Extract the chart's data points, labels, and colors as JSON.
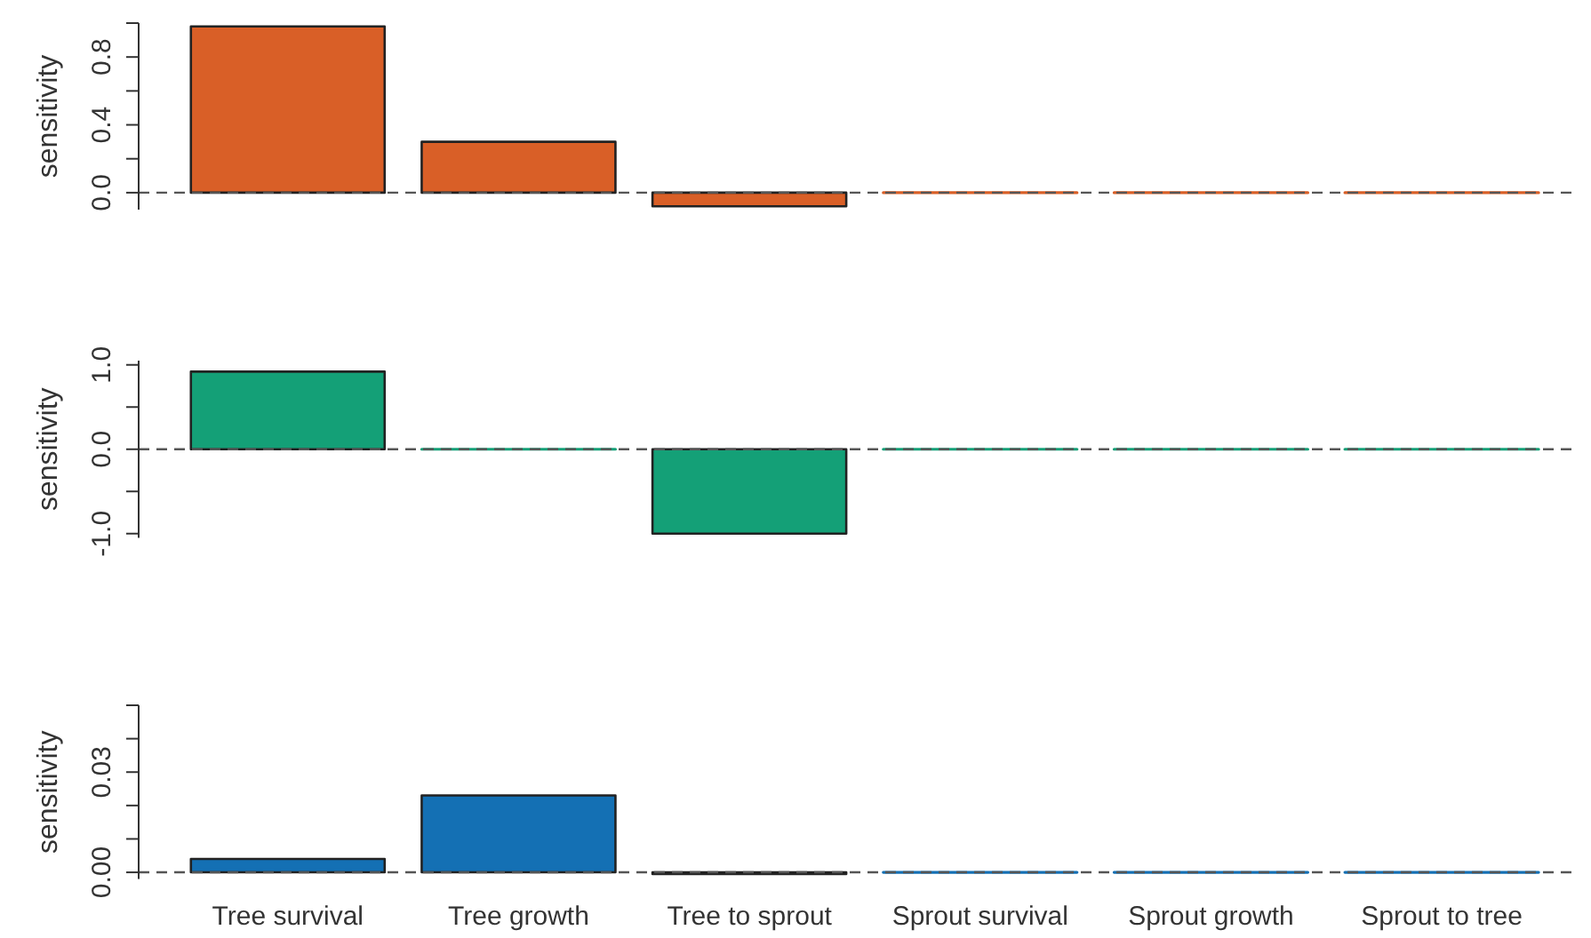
{
  "chart_data": [
    {
      "type": "bar",
      "categories": [
        null,
        null,
        null,
        null,
        null,
        null
      ],
      "values": [
        0.98,
        0.3,
        -0.08,
        0,
        0,
        0
      ],
      "color": "#d95f27",
      "ylabel": "sensitivity",
      "ylim": [
        -0.1,
        1.0
      ],
      "yticks": [
        {
          "value": 0,
          "label": "0.0"
        },
        {
          "value": 0.2,
          "label": null
        },
        0.4,
        {
          "value": 0.6,
          "label": null
        },
        0.8,
        {
          "value": 1,
          "label": null
        }
      ],
      "ref_lines": [
        {
          "axis": "y",
          "value": 0,
          "color": "#555555",
          "line_style": "dashed"
        }
      ]
    },
    {
      "type": "bar",
      "categories": [
        null,
        null,
        null,
        null,
        null,
        null
      ],
      "values": [
        0.92,
        0,
        -1.0,
        0,
        0,
        0
      ],
      "color": "#14a077",
      "ylabel": "sensitivity",
      "ylim": [
        -1.05,
        1.05
      ],
      "yticks": [
        {
          "value": -1,
          "label": "-1.0"
        },
        {
          "value": -0.5,
          "label": null
        },
        {
          "value": 0,
          "label": "0.0"
        },
        {
          "value": 0.5,
          "label": null
        },
        {
          "value": 1,
          "label": "1.0"
        }
      ],
      "ref_lines": [
        {
          "axis": "y",
          "value": 0,
          "color": "#555555",
          "line_style": "dashed"
        }
      ]
    },
    {
      "type": "bar",
      "categories": [
        "Tree survival",
        "Tree growth",
        "Tree to sprout",
        "Sprout survival",
        "Sprout growth",
        "Sprout to tree"
      ],
      "values": [
        0.004,
        0.023,
        -0.0005,
        0,
        0,
        0
      ],
      "color": "#1470b4",
      "ylabel": "sensitivity",
      "ylim": [
        -0.002,
        0.05
      ],
      "yticks": [
        {
          "value": 0,
          "label": "0.00"
        },
        {
          "value": 0.01,
          "label": null
        },
        {
          "value": 0.02,
          "label": null
        },
        0.03,
        {
          "value": 0.04,
          "label": null
        },
        {
          "value": 0.05,
          "label": null
        }
      ],
      "ref_lines": [
        {
          "axis": "y",
          "value": 0,
          "color": "#555555",
          "line_style": "dashed"
        }
      ]
    }
  ]
}
